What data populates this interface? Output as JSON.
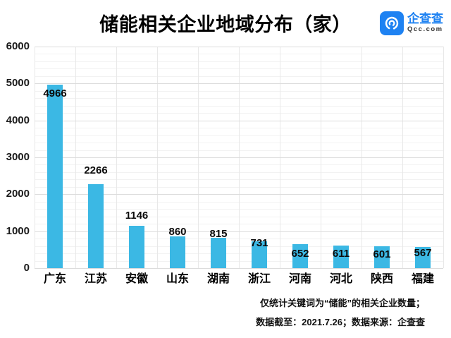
{
  "title": "储能相关企业地域分布（家）",
  "logo": {
    "name": "企查查",
    "domain": "Qcc.com",
    "brand_color": "#1e82f2"
  },
  "footer": {
    "line1": "仅统计关键词为“储能”的相关企业数量；",
    "line2": "数据截至：2021.7.26；数据来源：企查查"
  },
  "chart_data": {
    "type": "bar",
    "title": "储能相关企业地域分布（家）",
    "categories": [
      "广东",
      "江苏",
      "安徽",
      "山东",
      "湖南",
      "浙江",
      "河南",
      "河北",
      "陕西",
      "福建"
    ],
    "values": [
      4966,
      2266,
      1146,
      860,
      815,
      731,
      652,
      611,
      601,
      567
    ],
    "xlabel": "",
    "ylabel": "",
    "ylim": [
      0,
      6000
    ],
    "y_ticks": [
      0,
      1000,
      2000,
      3000,
      4000,
      5000,
      6000
    ],
    "y_minor_step": 200,
    "grid": true,
    "legend": "none",
    "bar_color": "#3bb8e4"
  }
}
